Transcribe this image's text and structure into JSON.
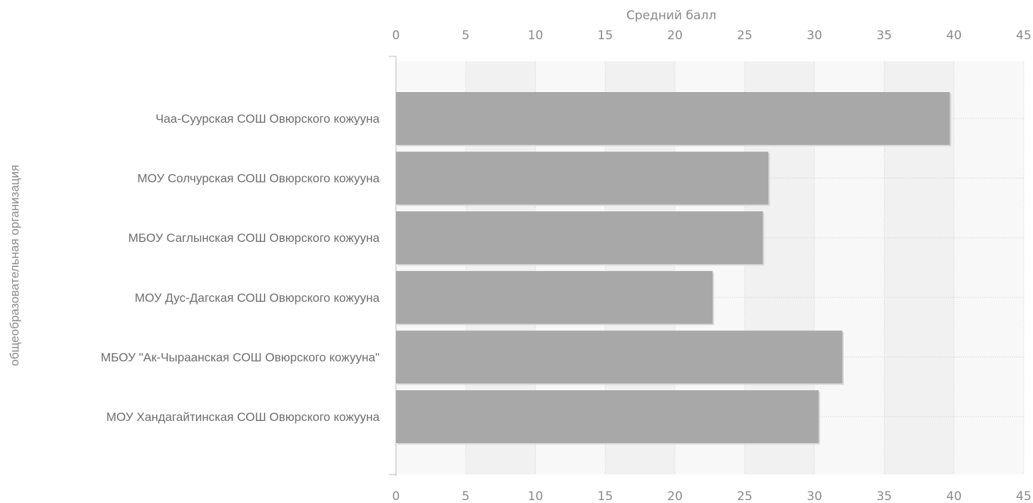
{
  "chart_data": {
    "type": "bar",
    "orientation": "horizontal",
    "title": "",
    "xlabel": "Средний балл",
    "ylabel": "общеобразовательная организация",
    "xlim": [
      0,
      45
    ],
    "x_ticks": [
      0,
      5,
      10,
      15,
      20,
      25,
      30,
      35,
      40,
      45
    ],
    "x_axis_position": "top-and-bottom",
    "grid": true,
    "legend": "none",
    "categories": [
      "Чаа-Суурская  СОШ Овюрского кожууна",
      "МОУ Солчурская СОШ Овюрского кожууна",
      "МБОУ Саглынская СОШ Овюрского кожууна",
      "МОУ Дус-Дагская СОШ Овюрского кожууна",
      "МБОУ \"Ак-Чыраанская  СОШ Овюрского кожууна\"",
      "МОУ Хандагайтинская СОШ Овюрского кожууна"
    ],
    "values": [
      39.7,
      26.7,
      26.3,
      22.7,
      32.0,
      30.3
    ],
    "colors": {
      "bar": "#a8a8a8",
      "bar_edge": "#d8d8d8",
      "band_light": "#f8f8f8",
      "band_dark": "#f1f1f1",
      "grid": "#cfcfcf",
      "axis": "#b8b8b8"
    }
  }
}
